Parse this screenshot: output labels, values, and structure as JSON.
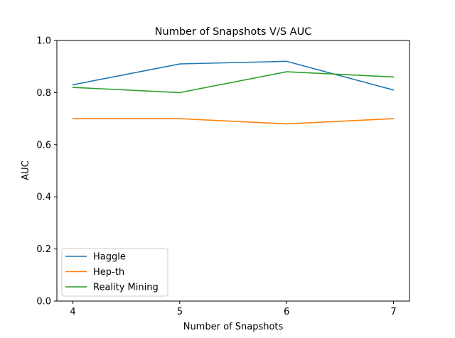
{
  "chart_data": {
    "type": "line",
    "title": "Number of Snapshots V/S AUC",
    "xlabel": "Number of Snapshots",
    "ylabel": "AUC",
    "x": [
      4,
      5,
      6,
      7
    ],
    "xticks": [
      "4",
      "5",
      "6",
      "7"
    ],
    "yticks": [
      "0.0",
      "0.2",
      "0.4",
      "0.6",
      "0.8",
      "1.0"
    ],
    "xlim": [
      3.85,
      7.15
    ],
    "ylim": [
      0.0,
      1.0
    ],
    "grid": false,
    "legend_position": "lower-left",
    "series": [
      {
        "name": "Haggle",
        "color": "#1f77b4",
        "values": [
          0.83,
          0.91,
          0.92,
          0.81
        ]
      },
      {
        "name": "Hep-th",
        "color": "#ff7f0e",
        "values": [
          0.7,
          0.7,
          0.68,
          0.7
        ]
      },
      {
        "name": "Reality Mining",
        "color": "#2ca02c",
        "values": [
          0.82,
          0.8,
          0.88,
          0.86
        ]
      }
    ]
  }
}
